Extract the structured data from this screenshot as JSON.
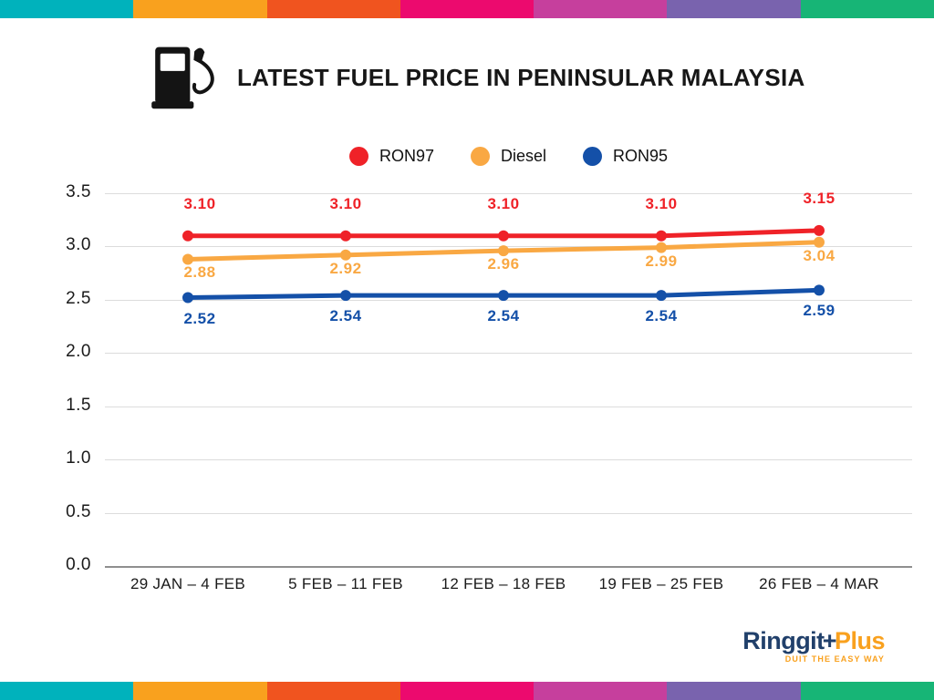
{
  "brand_bars": {
    "colors": [
      "#00B2BC",
      "#F9A11E",
      "#F0541F",
      "#EC0A6E",
      "#C63F9D",
      "#7963AE",
      "#17B576"
    ]
  },
  "header": {
    "title": "LATEST FUEL PRICE IN PENINSULAR MALAYSIA",
    "icon": "fuel-pump-icon"
  },
  "chart_data": {
    "type": "line",
    "title": "LATEST FUEL PRICE IN PENINSULAR MALAYSIA",
    "categories": [
      "29 JAN – 4 FEB",
      "5 FEB – 11 FEB",
      "12 FEB – 18 FEB",
      "19 FEB – 25 FEB",
      "26 FEB – 4 MAR"
    ],
    "series": [
      {
        "name": "RON97",
        "color": "#EF2228",
        "values": [
          3.1,
          3.1,
          3.1,
          3.1,
          3.15
        ],
        "labels": [
          "3.10",
          "3.10",
          "3.10",
          "3.10",
          "3.15"
        ],
        "label_position": "above"
      },
      {
        "name": "Diesel",
        "color": "#F9A843",
        "values": [
          2.88,
          2.92,
          2.96,
          2.99,
          3.04
        ],
        "labels": [
          "2.88",
          "2.92",
          "2.96",
          "2.99",
          "3.04"
        ],
        "label_position": "below"
      },
      {
        "name": "RON95",
        "color": "#1450A8",
        "values": [
          2.52,
          2.54,
          2.54,
          2.54,
          2.59
        ],
        "labels": [
          "2.52",
          "2.54",
          "2.54",
          "2.54",
          "2.59"
        ],
        "label_position": "below"
      }
    ],
    "xlabel": "",
    "ylabel": "",
    "ylim": [
      0.0,
      3.5
    ],
    "yticks": [
      "0.0",
      "0.5",
      "1.0",
      "1.5",
      "2.0",
      "2.5",
      "3.0",
      "3.5"
    ],
    "grid": true,
    "legend_position": "top-center"
  },
  "footer": {
    "logo_part1": "Ringgit",
    "logo_plus_sign": "+",
    "logo_part2": "Plus",
    "tagline": "DUIT THE EASY WAY",
    "logo_navy": "#21406B",
    "logo_orange": "#F9A11E"
  }
}
